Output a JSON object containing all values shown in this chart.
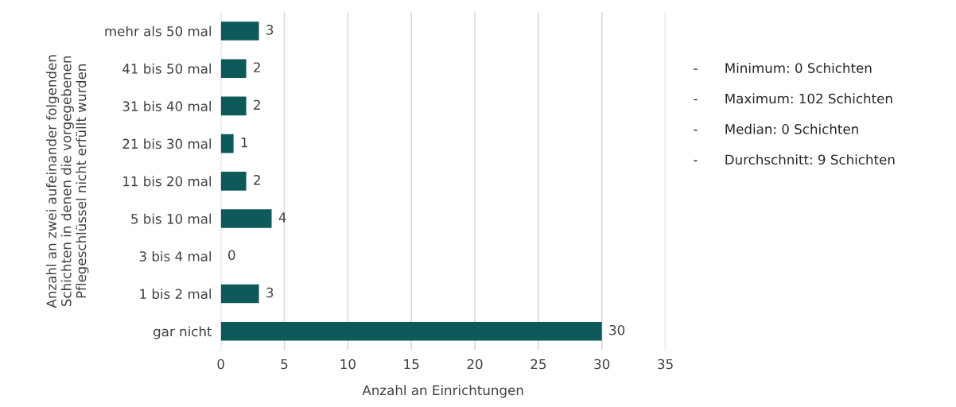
{
  "chart_data": {
    "type": "bar",
    "orientation": "horizontal",
    "categories": [
      "mehr als 50 mal",
      "41 bis 50 mal",
      "31 bis 40 mal",
      "21 bis 30 mal",
      "11 bis 20 mal",
      "5 bis 10 mal",
      "3 bis 4 mal",
      "1 bis 2 mal",
      "gar nicht"
    ],
    "values": [
      3,
      2,
      2,
      1,
      2,
      4,
      0,
      3,
      30
    ],
    "color": "#0e5a5a",
    "xlabel": "Anzahl an Einrichtungen",
    "ylabel": "Anzahl an zwei aufeinander folgenden\nSchichten in denen die vorgegebenen\nPflegeschlüssel nicht erfüllt wurden",
    "xlim": [
      0,
      35
    ],
    "xticks": [
      0,
      5,
      10,
      15,
      20,
      25,
      30,
      35
    ],
    "grid": "x",
    "data_labels": true,
    "legend": false,
    "annotations": [
      "-  Minimum: 0 Schichten",
      "-  Maximum: 102 Schichten",
      "-  Median: 0 Schichten",
      "-  Durchschnitt: 9 Schichten"
    ]
  }
}
